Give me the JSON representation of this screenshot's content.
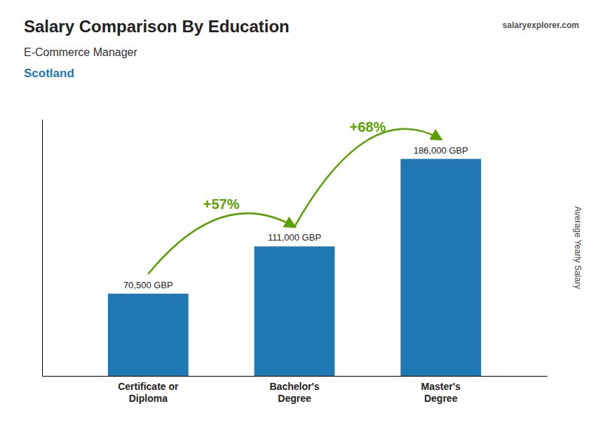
{
  "chart_data": {
    "type": "bar",
    "title": "Salary Comparison By Education",
    "subtitle": "E-Commerce Manager",
    "location": "Scotland",
    "watermark": "salaryexplorer.com",
    "ylabel": "Average Yearly Salary",
    "categories": [
      "Certificate or\nDiploma",
      "Bachelor's\nDegree",
      "Master's\nDegree"
    ],
    "values": [
      70500,
      111000,
      186000
    ],
    "value_labels": [
      "70,500 GBP",
      "111,000 GBP",
      "186,000 GBP"
    ],
    "data_labels": true,
    "annotations": [
      "+57%",
      "+68%"
    ],
    "ylim": [
      0,
      220000
    ],
    "tick_labels": "x"
  }
}
